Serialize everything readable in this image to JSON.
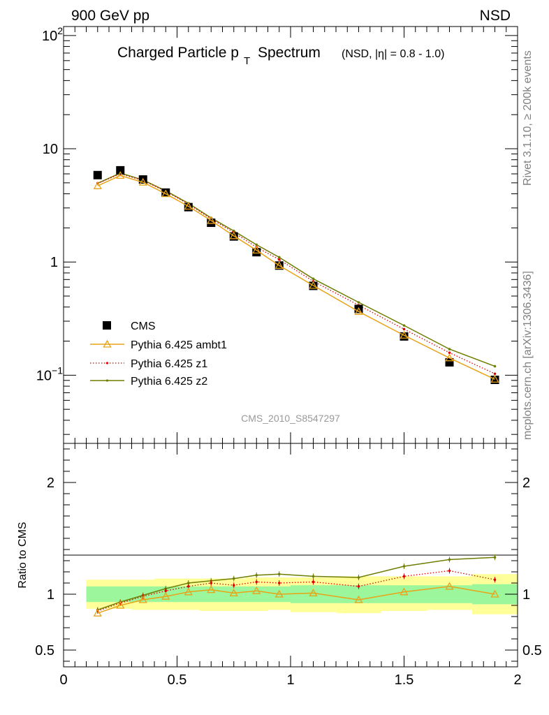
{
  "header": {
    "left": "900 GeV pp",
    "right": "NSD"
  },
  "side_labels": {
    "rivet": "Rivet 3.1.10, ≥ 200k events",
    "mcplots": "mcplots.cern.ch [arXiv:1306.3436]"
  },
  "analysis_id": "CMS_2010_S8547297",
  "colors": {
    "cms": "#000000",
    "ambt1": "#e8a317",
    "z1": "#dd0000",
    "z2": "#6f7d00",
    "band_inner": "#9cf79c",
    "band_outer": "#ffff99"
  },
  "chart_data": [
    {
      "type": "scatter",
      "title": "Charged Particle p",
      "title_sub": "T",
      "title_suffix": "Spectrum",
      "title_note": "(NSD, |η| = 0.8 - 1.0)",
      "xlabel": "",
      "ylabel": "",
      "xlim": [
        0,
        2
      ],
      "ylim": [
        0.025,
        120
      ],
      "yscale": "log",
      "y_ticks": [
        {
          "value": 100,
          "base": "10",
          "exp": "2"
        },
        {
          "value": 10,
          "base": "10",
          "exp": ""
        },
        {
          "value": 1,
          "base": "1",
          "exp": ""
        },
        {
          "value": 0.1,
          "base": "10",
          "exp": "−1"
        }
      ],
      "legend_position": "bottom-left",
      "x": [
        0.15,
        0.25,
        0.35,
        0.45,
        0.55,
        0.65,
        0.75,
        0.85,
        0.95,
        1.1,
        1.3,
        1.5,
        1.7,
        1.9
      ],
      "series": [
        {
          "name": "CMS",
          "key": "cms",
          "style": "square",
          "values": [
            5.85,
            6.45,
            5.35,
            4.1,
            3.05,
            2.22,
            1.68,
            1.22,
            0.93,
            0.615,
            0.385,
            0.22,
            0.13,
            0.091
          ]
        },
        {
          "name": "Pythia 6.425 ambt1",
          "key": "ambt1",
          "style": "triangle",
          "values": [
            4.7,
            5.8,
            5.05,
            4.0,
            3.1,
            2.32,
            1.7,
            1.27,
            0.93,
            0.62,
            0.365,
            0.225,
            0.142,
            0.092
          ]
        },
        {
          "name": "Pythia 6.425 z1",
          "key": "z1",
          "style": "dotted",
          "values": [
            4.95,
            6.0,
            5.25,
            4.2,
            3.25,
            2.4,
            1.82,
            1.35,
            1.05,
            0.675,
            0.415,
            0.255,
            0.158,
            0.103
          ]
        },
        {
          "name": "Pythia 6.425 z2",
          "key": "z2",
          "style": "solid",
          "values": [
            4.95,
            6.1,
            5.3,
            4.25,
            3.3,
            2.45,
            1.88,
            1.42,
            1.1,
            0.71,
            0.44,
            0.275,
            0.17,
            0.12
          ]
        }
      ]
    },
    {
      "type": "line",
      "ylabel": "Ratio to CMS",
      "xlim": [
        0,
        2
      ],
      "ylim": [
        0.35,
        2.35
      ],
      "x_tick_labels": [
        "0",
        "0.5",
        "1",
        "1.5",
        "2"
      ],
      "y_tick_labels": [
        "0.5",
        "1",
        "2"
      ],
      "bands": {
        "edges": [
          0.1,
          0.2,
          0.3,
          0.4,
          0.5,
          0.6,
          0.7,
          0.8,
          0.9,
          1.0,
          1.2,
          1.4,
          1.6,
          1.8,
          2.0
        ],
        "inner_low": [
          0.93,
          0.93,
          0.93,
          0.93,
          0.93,
          0.93,
          0.93,
          0.93,
          0.93,
          0.92,
          0.92,
          0.92,
          0.92,
          0.91
        ],
        "inner_high": [
          1.07,
          1.07,
          1.07,
          1.07,
          1.07,
          1.07,
          1.07,
          1.07,
          1.07,
          1.08,
          1.08,
          1.08,
          1.08,
          1.09
        ],
        "outer_low": [
          0.87,
          0.87,
          0.86,
          0.86,
          0.86,
          0.85,
          0.85,
          0.85,
          0.86,
          0.84,
          0.83,
          0.85,
          0.86,
          0.82
        ],
        "outer_high": [
          1.13,
          1.13,
          1.13,
          1.14,
          1.14,
          1.14,
          1.14,
          1.15,
          1.15,
          1.15,
          1.16,
          1.16,
          1.16,
          1.18
        ]
      },
      "x": [
        0.15,
        0.25,
        0.35,
        0.45,
        0.55,
        0.65,
        0.75,
        0.85,
        0.95,
        1.1,
        1.3,
        1.5,
        1.7,
        1.9
      ],
      "series": [
        {
          "name": "Pythia 6.425 ambt1",
          "key": "ambt1",
          "style": "triangle",
          "values": [
            0.83,
            0.9,
            0.95,
            0.98,
            1.02,
            1.04,
            1.01,
            1.03,
            1.0,
            1.01,
            0.95,
            1.02,
            1.07,
            1.0
          ]
        },
        {
          "name": "Pythia 6.425 z1",
          "key": "z1",
          "style": "dotted",
          "values": [
            0.85,
            0.92,
            0.98,
            1.03,
            1.07,
            1.1,
            1.08,
            1.11,
            1.1,
            1.11,
            1.07,
            1.16,
            1.21,
            1.13
          ]
        },
        {
          "name": "Pythia 6.425 z2",
          "key": "z2",
          "style": "solid",
          "values": [
            0.86,
            0.93,
            0.99,
            1.05,
            1.1,
            1.12,
            1.14,
            1.17,
            1.18,
            1.16,
            1.15,
            1.25,
            1.31,
            1.33
          ]
        }
      ]
    }
  ]
}
